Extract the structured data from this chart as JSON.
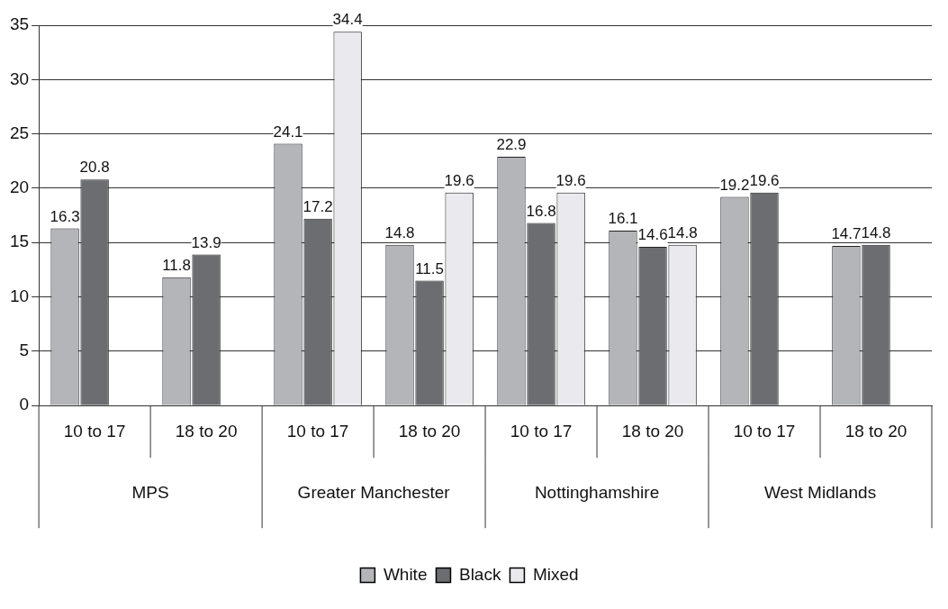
{
  "chart_data": {
    "type": "bar",
    "categories": [
      "10 to 17",
      "18 to 20",
      "10 to 17",
      "18 to 20",
      "10 to 17",
      "18 to 20",
      "10 to 17",
      "18 to 20"
    ],
    "series": [
      {
        "name": "White",
        "color": "#b4b5b9",
        "values": [
          16.3,
          11.8,
          24.1,
          14.8,
          22.9,
          16.1,
          19.2,
          14.7
        ]
      },
      {
        "name": "Black",
        "color": "#6b6d71",
        "values": [
          20.8,
          13.9,
          17.2,
          11.5,
          16.8,
          14.6,
          19.6,
          14.8
        ]
      },
      {
        "name": "Mixed",
        "color": "#eaeaee",
        "values": [
          null,
          null,
          34.4,
          19.6,
          19.6,
          14.8,
          null,
          null
        ]
      }
    ],
    "annotations": [
      "MPS",
      "Greater Manchester",
      "Nottinghamshire",
      "West Midlands"
    ],
    "ylim": [
      0,
      35
    ],
    "yticks": [
      0,
      5,
      10,
      15,
      20,
      25,
      30,
      35
    ],
    "grid": "y",
    "data_labels": true,
    "legend": "bottom"
  }
}
